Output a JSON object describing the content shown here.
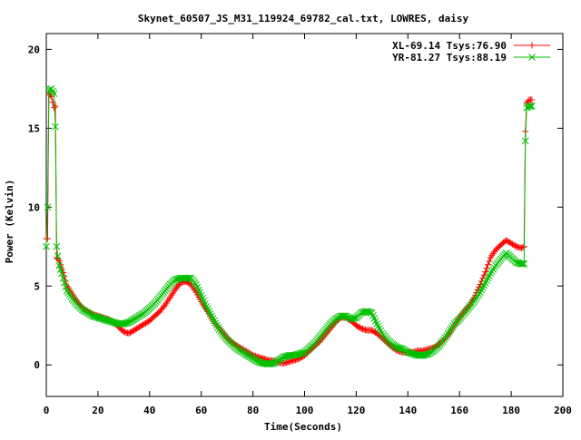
{
  "chart_data": {
    "type": "line",
    "title": "Skynet_60507_JS_M31_119924_69782_cal.txt, LOWRES, daisy",
    "xlabel": "Time(Seconds)",
    "ylabel": "Power (Kelvin)",
    "xlim": [
      0,
      200
    ],
    "ylim": [
      -2,
      21
    ],
    "xticks": [
      0,
      20,
      40,
      60,
      80,
      100,
      120,
      140,
      160,
      180,
      200
    ],
    "yticks": [
      0,
      5,
      10,
      15,
      20
    ],
    "grid": false,
    "legend_position": "top-right",
    "series": [
      {
        "name": "XL-69.14 Tsys:76.90",
        "color": "#ff0000",
        "marker": "plus",
        "points": [
          [
            0,
            8.0
          ],
          [
            0.5,
            8.0
          ],
          [
            1,
            17.2
          ],
          [
            2,
            17.0
          ],
          [
            3,
            16.3
          ],
          [
            3.5,
            16.4
          ],
          [
            4,
            6.8
          ],
          [
            5,
            6.6
          ],
          [
            6,
            6.1
          ],
          [
            7,
            5.6
          ],
          [
            8,
            5.0
          ],
          [
            10,
            4.5
          ],
          [
            12,
            4.0
          ],
          [
            14,
            3.6
          ],
          [
            16,
            3.4
          ],
          [
            18,
            3.2
          ],
          [
            20,
            3.1
          ],
          [
            22,
            3.0
          ],
          [
            24,
            2.9
          ],
          [
            26,
            2.7
          ],
          [
            28,
            2.4
          ],
          [
            30,
            2.1
          ],
          [
            32,
            2.0
          ],
          [
            34,
            2.2
          ],
          [
            36,
            2.4
          ],
          [
            38,
            2.6
          ],
          [
            40,
            2.8
          ],
          [
            42,
            3.1
          ],
          [
            44,
            3.4
          ],
          [
            46,
            3.8
          ],
          [
            48,
            4.3
          ],
          [
            50,
            4.8
          ],
          [
            52,
            5.2
          ],
          [
            54,
            5.3
          ],
          [
            56,
            5.1
          ],
          [
            58,
            4.6
          ],
          [
            60,
            4.0
          ],
          [
            62,
            3.5
          ],
          [
            64,
            3.0
          ],
          [
            66,
            2.5
          ],
          [
            68,
            2.1
          ],
          [
            70,
            1.7
          ],
          [
            72,
            1.4
          ],
          [
            74,
            1.2
          ],
          [
            76,
            1.0
          ],
          [
            78,
            0.8
          ],
          [
            80,
            0.6
          ],
          [
            82,
            0.5
          ],
          [
            84,
            0.4
          ],
          [
            86,
            0.3
          ],
          [
            88,
            0.25
          ],
          [
            90,
            0.15
          ],
          [
            92,
            0.1
          ],
          [
            94,
            0.2
          ],
          [
            96,
            0.3
          ],
          [
            98,
            0.4
          ],
          [
            100,
            0.6
          ],
          [
            102,
            0.9
          ],
          [
            104,
            1.2
          ],
          [
            106,
            1.5
          ],
          [
            108,
            1.9
          ],
          [
            110,
            2.3
          ],
          [
            112,
            2.7
          ],
          [
            114,
            3.0
          ],
          [
            116,
            3.0
          ],
          [
            118,
            2.8
          ],
          [
            120,
            2.5
          ],
          [
            122,
            2.3
          ],
          [
            124,
            2.2
          ],
          [
            126,
            2.2
          ],
          [
            128,
            2.0
          ],
          [
            130,
            1.7
          ],
          [
            132,
            1.4
          ],
          [
            134,
            1.1
          ],
          [
            136,
            0.9
          ],
          [
            138,
            0.8
          ],
          [
            140,
            0.8
          ],
          [
            142,
            0.8
          ],
          [
            144,
            0.9
          ],
          [
            146,
            0.9
          ],
          [
            148,
            1.0
          ],
          [
            150,
            1.1
          ],
          [
            152,
            1.3
          ],
          [
            154,
            1.6
          ],
          [
            156,
            2.0
          ],
          [
            158,
            2.5
          ],
          [
            160,
            3.0
          ],
          [
            162,
            3.4
          ],
          [
            164,
            3.8
          ],
          [
            166,
            4.4
          ],
          [
            168,
            5.1
          ],
          [
            170,
            5.9
          ],
          [
            172,
            6.8
          ],
          [
            174,
            7.3
          ],
          [
            176,
            7.6
          ],
          [
            178,
            7.9
          ],
          [
            180,
            7.7
          ],
          [
            182,
            7.5
          ],
          [
            184,
            7.4
          ],
          [
            185,
            7.5
          ],
          [
            185.5,
            14.8
          ],
          [
            186,
            16.6
          ],
          [
            187,
            16.8
          ],
          [
            188,
            16.8
          ]
        ]
      },
      {
        "name": "YR-81.27 Tsys:88.19",
        "color": "#00c000",
        "marker": "cross",
        "points": [
          [
            0,
            7.5
          ],
          [
            0.5,
            10.0
          ],
          [
            1,
            17.4
          ],
          [
            2,
            17.5
          ],
          [
            3,
            17.2
          ],
          [
            3.5,
            15.1
          ],
          [
            4,
            7.5
          ],
          [
            5,
            6.3
          ],
          [
            6,
            5.8
          ],
          [
            7,
            5.2
          ],
          [
            8,
            4.7
          ],
          [
            10,
            4.2
          ],
          [
            12,
            3.8
          ],
          [
            14,
            3.5
          ],
          [
            16,
            3.3
          ],
          [
            18,
            3.1
          ],
          [
            20,
            3.0
          ],
          [
            22,
            2.9
          ],
          [
            24,
            2.8
          ],
          [
            26,
            2.7
          ],
          [
            28,
            2.6
          ],
          [
            30,
            2.6
          ],
          [
            32,
            2.7
          ],
          [
            34,
            2.9
          ],
          [
            36,
            3.1
          ],
          [
            38,
            3.3
          ],
          [
            40,
            3.6
          ],
          [
            42,
            3.9
          ],
          [
            44,
            4.3
          ],
          [
            46,
            4.7
          ],
          [
            48,
            5.1
          ],
          [
            50,
            5.4
          ],
          [
            52,
            5.5
          ],
          [
            54,
            5.5
          ],
          [
            56,
            5.5
          ],
          [
            58,
            5.1
          ],
          [
            60,
            4.4
          ],
          [
            62,
            3.7
          ],
          [
            64,
            3.1
          ],
          [
            66,
            2.5
          ],
          [
            68,
            2.0
          ],
          [
            70,
            1.6
          ],
          [
            72,
            1.3
          ],
          [
            74,
            1.0
          ],
          [
            76,
            0.8
          ],
          [
            78,
            0.6
          ],
          [
            80,
            0.4
          ],
          [
            82,
            0.2
          ],
          [
            84,
            0.1
          ],
          [
            86,
            0.05
          ],
          [
            88,
            0.1
          ],
          [
            90,
            0.3
          ],
          [
            92,
            0.5
          ],
          [
            94,
            0.6
          ],
          [
            96,
            0.6
          ],
          [
            98,
            0.7
          ],
          [
            100,
            0.8
          ],
          [
            102,
            1.1
          ],
          [
            104,
            1.4
          ],
          [
            106,
            1.8
          ],
          [
            108,
            2.2
          ],
          [
            110,
            2.6
          ],
          [
            112,
            2.9
          ],
          [
            114,
            3.1
          ],
          [
            116,
            3.1
          ],
          [
            118,
            2.9
          ],
          [
            120,
            3.0
          ],
          [
            122,
            3.3
          ],
          [
            124,
            3.4
          ],
          [
            126,
            3.3
          ],
          [
            128,
            2.6
          ],
          [
            130,
            2.0
          ],
          [
            132,
            1.6
          ],
          [
            134,
            1.3
          ],
          [
            136,
            1.1
          ],
          [
            138,
            1.0
          ],
          [
            140,
            0.8
          ],
          [
            142,
            0.7
          ],
          [
            144,
            0.6
          ],
          [
            146,
            0.6
          ],
          [
            148,
            0.7
          ],
          [
            150,
            0.9
          ],
          [
            152,
            1.2
          ],
          [
            154,
            1.6
          ],
          [
            156,
            2.1
          ],
          [
            158,
            2.6
          ],
          [
            160,
            2.9
          ],
          [
            162,
            3.3
          ],
          [
            164,
            3.7
          ],
          [
            166,
            4.1
          ],
          [
            168,
            4.6
          ],
          [
            170,
            5.2
          ],
          [
            172,
            5.8
          ],
          [
            174,
            6.3
          ],
          [
            176,
            6.7
          ],
          [
            178,
            7.1
          ],
          [
            180,
            6.8
          ],
          [
            182,
            6.5
          ],
          [
            184,
            6.4
          ],
          [
            185,
            6.4
          ],
          [
            185.5,
            14.2
          ],
          [
            186,
            16.3
          ],
          [
            187,
            16.4
          ],
          [
            188,
            16.4
          ]
        ]
      }
    ]
  }
}
